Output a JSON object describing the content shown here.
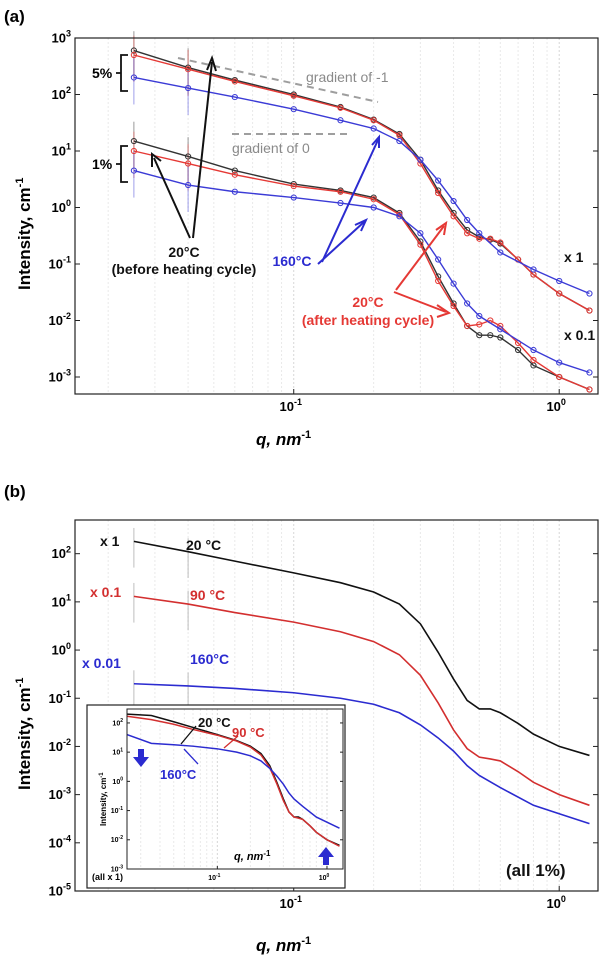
{
  "chart_data": [
    {
      "panel_label": "(a)",
      "type": "scatter",
      "xscale": "log",
      "yscale": "log",
      "xlim": [
        0.015,
        1.4
      ],
      "ylim": [
        0.0005,
        1000
      ],
      "xlabel": "q, nm",
      "xlabel_sup": "-1",
      "ylabel": "Intensity, cm",
      "ylabel_sup": "-1",
      "x_ticks": [
        {
          "value": 0.1,
          "base": "10",
          "exp": "-1"
        },
        {
          "value": 1,
          "base": "10",
          "exp": "0"
        }
      ],
      "y_ticks": [
        {
          "value": 0.001,
          "base": "10",
          "exp": "-3"
        },
        {
          "value": 0.01,
          "base": "10",
          "exp": "-2"
        },
        {
          "value": 0.1,
          "base": "10",
          "exp": "-1"
        },
        {
          "value": 1,
          "base": "10",
          "exp": "0"
        },
        {
          "value": 10,
          "base": "10",
          "exp": "1"
        },
        {
          "value": 100,
          "base": "10",
          "exp": "2"
        },
        {
          "value": 1000,
          "base": "10",
          "exp": "3"
        }
      ],
      "series": [
        {
          "color": "#333333",
          "x": [
            0.025,
            0.04,
            0.06,
            0.1,
            0.15,
            0.2,
            0.25,
            0.3,
            0.35,
            0.4,
            0.45,
            0.5,
            0.55,
            0.6,
            0.7,
            0.8,
            1.0,
            1.3
          ],
          "y": [
            600,
            300,
            180,
            100,
            60,
            36,
            20,
            7,
            2,
            0.8,
            0.4,
            0.3,
            0.27,
            0.23,
            0.12,
            0.065,
            0.03,
            0.015
          ]
        },
        {
          "color": "#e53935",
          "x": [
            0.025,
            0.04,
            0.06,
            0.1,
            0.15,
            0.2,
            0.25,
            0.3,
            0.35,
            0.4,
            0.45,
            0.5,
            0.55,
            0.6,
            0.7,
            0.8,
            1.0,
            1.3
          ],
          "y": [
            500,
            280,
            170,
            95,
            58,
            35,
            19,
            6,
            1.8,
            0.7,
            0.35,
            0.28,
            0.28,
            0.24,
            0.12,
            0.065,
            0.03,
            0.015
          ]
        },
        {
          "color": "#3b3bd6",
          "x": [
            0.025,
            0.04,
            0.06,
            0.1,
            0.15,
            0.2,
            0.25,
            0.3,
            0.35,
            0.4,
            0.45,
            0.5,
            0.6,
            0.8,
            1.0,
            1.3
          ],
          "y": [
            200,
            130,
            90,
            55,
            35,
            25,
            15,
            7,
            3,
            1.3,
            0.6,
            0.35,
            0.16,
            0.08,
            0.05,
            0.03
          ]
        },
        {
          "color": "#333333",
          "x": [
            0.025,
            0.04,
            0.06,
            0.1,
            0.15,
            0.2,
            0.25,
            0.3,
            0.35,
            0.4,
            0.45,
            0.5,
            0.55,
            0.6,
            0.7,
            0.8,
            1.0,
            1.3
          ],
          "y": [
            15,
            8,
            4.5,
            2.6,
            2,
            1.5,
            0.8,
            0.25,
            0.06,
            0.02,
            0.008,
            0.0055,
            0.0055,
            0.005,
            0.003,
            0.0016,
            0.001,
            0.0006
          ]
        },
        {
          "color": "#e53935",
          "x": [
            0.025,
            0.04,
            0.06,
            0.1,
            0.15,
            0.2,
            0.25,
            0.3,
            0.35,
            0.4,
            0.45,
            0.5,
            0.55,
            0.6,
            0.7,
            0.8,
            1.0,
            1.3
          ],
          "y": [
            10,
            6,
            3.8,
            2.4,
            1.9,
            1.4,
            0.75,
            0.22,
            0.05,
            0.018,
            0.008,
            0.0085,
            0.01,
            0.008,
            0.004,
            0.002,
            0.001,
            0.0006
          ]
        },
        {
          "color": "#3b3bd6",
          "x": [
            0.025,
            0.04,
            0.06,
            0.1,
            0.15,
            0.2,
            0.25,
            0.3,
            0.35,
            0.4,
            0.45,
            0.5,
            0.6,
            0.8,
            1.0,
            1.3
          ],
          "y": [
            4.5,
            2.5,
            1.9,
            1.5,
            1.2,
            1,
            0.7,
            0.35,
            0.12,
            0.045,
            0.02,
            0.012,
            0.007,
            0.003,
            0.0018,
            0.0012
          ]
        }
      ],
      "annotations": {
        "group_5pct": "5%",
        "group_1pct": "1%",
        "gradient_m1": "gradient of -1",
        "gradient_0": "gradient of 0",
        "t20_before_1": "20°C",
        "t20_before_2": "(before heating cycle)",
        "t160": "160°C",
        "t20_after_1": "20°C",
        "t20_after_2": "(after heating cycle)",
        "scale_x1": "x 1",
        "scale_x01": "x 0.1"
      },
      "colors": {
        "black": "#333333",
        "red": "#e53935",
        "blue": "#3b3bd6",
        "gray": "#9e9e9e"
      }
    },
    {
      "panel_label": "(b)",
      "type": "line",
      "xscale": "log",
      "yscale": "log",
      "xlim": [
        0.015,
        1.4
      ],
      "ylim": [
        1e-05,
        500
      ],
      "xlabel": "q, nm",
      "xlabel_sup": "-1",
      "ylabel": "Intensity, cm",
      "ylabel_sup": "-1",
      "x_ticks": [
        {
          "value": 0.1,
          "base": "10",
          "exp": "-1"
        },
        {
          "value": 1,
          "base": "10",
          "exp": "0"
        }
      ],
      "y_ticks": [
        {
          "value": 1e-05,
          "base": "10",
          "exp": "-5"
        },
        {
          "value": 0.0001,
          "base": "10",
          "exp": "-4"
        },
        {
          "value": 0.001,
          "base": "10",
          "exp": "-3"
        },
        {
          "value": 0.01,
          "base": "10",
          "exp": "-2"
        },
        {
          "value": 0.1,
          "base": "10",
          "exp": "-1"
        },
        {
          "value": 1,
          "base": "10",
          "exp": "0"
        },
        {
          "value": 10,
          "base": "10",
          "exp": "1"
        },
        {
          "value": 100,
          "base": "10",
          "exp": "2"
        }
      ],
      "series": [
        {
          "name": "20 °C",
          "scale_label": "x 1",
          "color": "#111111",
          "x": [
            0.025,
            0.04,
            0.06,
            0.1,
            0.15,
            0.2,
            0.25,
            0.3,
            0.35,
            0.4,
            0.45,
            0.5,
            0.55,
            0.6,
            0.7,
            0.8,
            1.0,
            1.3
          ],
          "y": [
            180,
            110,
            70,
            40,
            25,
            16,
            9,
            3.5,
            0.9,
            0.25,
            0.09,
            0.06,
            0.06,
            0.05,
            0.03,
            0.018,
            0.01,
            0.0065
          ]
        },
        {
          "name": "90 °C",
          "scale_label": "x 0.1",
          "color": "#d32f2f",
          "x": [
            0.025,
            0.04,
            0.06,
            0.1,
            0.15,
            0.2,
            0.25,
            0.3,
            0.35,
            0.4,
            0.45,
            0.5,
            0.55,
            0.6,
            0.7,
            0.8,
            1.0,
            1.3
          ],
          "y": [
            13,
            9,
            6,
            3.8,
            2.4,
            1.5,
            0.8,
            0.3,
            0.08,
            0.022,
            0.009,
            0.006,
            0.0055,
            0.005,
            0.003,
            0.0018,
            0.001,
            0.0006
          ]
        },
        {
          "name": "160°C",
          "scale_label": "x 0.01",
          "color": "#2b2bd0",
          "x": [
            0.025,
            0.04,
            0.06,
            0.1,
            0.15,
            0.2,
            0.25,
            0.3,
            0.35,
            0.4,
            0.45,
            0.5,
            0.6,
            0.8,
            1.0,
            1.3
          ],
          "y": [
            0.2,
            0.18,
            0.16,
            0.13,
            0.1,
            0.075,
            0.05,
            0.028,
            0.015,
            0.008,
            0.004,
            0.0025,
            0.0014,
            0.0006,
            0.0004,
            0.00025
          ]
        }
      ],
      "note": "(all 1%)",
      "inset": {
        "ylabel": "Intensity, cm",
        "ylabel_sup": "-1",
        "xlabel": "q, nm",
        "xlabel_sup": "-1",
        "note": "(all x 1)",
        "xlim": [
          0.015,
          1.4
        ],
        "ylim": [
          0.001,
          300
        ],
        "x_ticks": [
          {
            "value": 0.1,
            "base": "10",
            "exp": "-1"
          },
          {
            "value": 1,
            "base": "10",
            "exp": "0"
          }
        ],
        "y_ticks": [
          {
            "value": 0.001,
            "base": "10",
            "exp": "-3"
          },
          {
            "value": 0.01,
            "base": "10",
            "exp": "-2"
          },
          {
            "value": 0.1,
            "base": "10",
            "exp": "-1"
          },
          {
            "value": 1,
            "base": "10",
            "exp": "0"
          },
          {
            "value": 10,
            "base": "10",
            "exp": "1"
          },
          {
            "value": 100,
            "base": "10",
            "exp": "2"
          }
        ],
        "series": [
          {
            "name": "20 °C",
            "color": "#111111",
            "x": [
              0.015,
              0.025,
              0.04,
              0.06,
              0.1,
              0.15,
              0.2,
              0.25,
              0.3,
              0.35,
              0.4,
              0.45,
              0.5,
              0.55,
              0.6,
              0.7,
              0.8,
              1.0,
              1.3
            ],
            "y": [
              200,
              180,
              110,
              70,
              40,
              25,
              16,
              9,
              3.5,
              0.9,
              0.25,
              0.09,
              0.06,
              0.06,
              0.05,
              0.03,
              0.018,
              0.01,
              0.0065
            ]
          },
          {
            "name": "90 °C",
            "color": "#d32f2f",
            "x": [
              0.015,
              0.025,
              0.04,
              0.06,
              0.1,
              0.15,
              0.2,
              0.25,
              0.3,
              0.35,
              0.4,
              0.45,
              0.5,
              0.55,
              0.6,
              0.7,
              0.8,
              1.0,
              1.3
            ],
            "y": [
              170,
              130,
              90,
              60,
              38,
              24,
              15,
              8,
              3,
              0.8,
              0.22,
              0.09,
              0.06,
              0.055,
              0.05,
              0.03,
              0.018,
              0.01,
              0.006
            ]
          },
          {
            "name": "160°C",
            "color": "#2b2bd0",
            "x": [
              0.015,
              0.025,
              0.04,
              0.06,
              0.1,
              0.15,
              0.2,
              0.25,
              0.3,
              0.35,
              0.4,
              0.45,
              0.5,
              0.6,
              0.8,
              1.0,
              1.3
            ],
            "y": [
              40,
              20,
              18,
              16,
              13,
              10,
              7.5,
              5,
              2.8,
              1.5,
              0.8,
              0.4,
              0.25,
              0.14,
              0.06,
              0.04,
              0.025
            ]
          }
        ]
      }
    }
  ]
}
